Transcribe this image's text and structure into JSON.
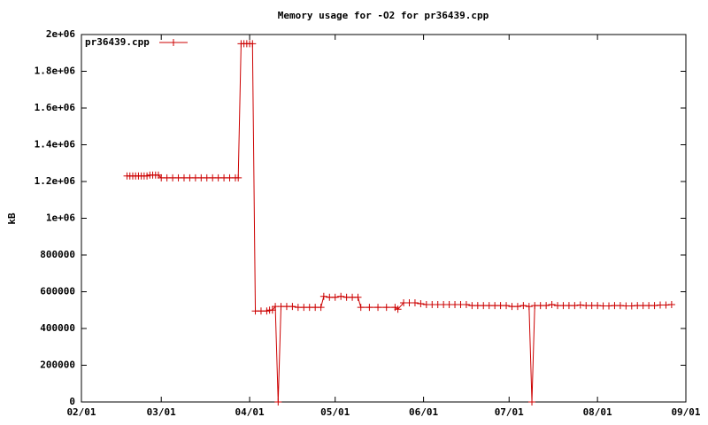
{
  "chart_data": {
    "type": "line",
    "title": "Memory usage for -O2 for pr36439.cpp",
    "ylabel": "kB",
    "x": [
      "02/17",
      "02/18",
      "02/19",
      "02/20",
      "02/21",
      "02/22",
      "02/23",
      "02/24",
      "02/25",
      "02/26",
      "02/27",
      "02/28",
      "03/01",
      "03/03",
      "03/05",
      "03/07",
      "03/09",
      "03/11",
      "03/13",
      "03/15",
      "03/17",
      "03/19",
      "03/21",
      "03/23",
      "03/25",
      "03/27",
      "03/28",
      "03/29",
      "03/30",
      "03/31",
      "04/01",
      "04/02",
      "04/03",
      "04/05",
      "04/07",
      "04/08",
      "04/09",
      "04/10",
      "04/11",
      "04/12",
      "04/14",
      "04/16",
      "04/18",
      "04/20",
      "04/22",
      "04/24",
      "04/26",
      "04/27",
      "04/29",
      "05/01",
      "05/03",
      "05/05",
      "05/07",
      "05/09",
      "05/10",
      "05/13",
      "05/16",
      "05/19",
      "05/22",
      "05/23",
      "05/25",
      "05/27",
      "05/29",
      "05/31",
      "06/02",
      "06/04",
      "06/06",
      "06/08",
      "06/10",
      "06/12",
      "06/14",
      "06/16",
      "06/18",
      "06/20",
      "06/22",
      "06/24",
      "06/26",
      "06/28",
      "06/30",
      "07/02",
      "07/04",
      "07/06",
      "07/08",
      "07/09",
      "07/10",
      "07/12",
      "07/14",
      "07/16",
      "07/18",
      "07/20",
      "07/22",
      "07/24",
      "07/26",
      "07/28",
      "07/30",
      "08/01",
      "08/03",
      "08/05",
      "08/07",
      "08/09",
      "08/11",
      "08/13",
      "08/15",
      "08/17",
      "08/19",
      "08/21",
      "08/23",
      "08/25",
      "08/27"
    ],
    "series": [
      {
        "name": "pr36439.cpp",
        "color": "#cc0000",
        "values": [
          1230000,
          1230000,
          1230000,
          1230000,
          1230000,
          1230000,
          1230000,
          1230000,
          1235000,
          1235000,
          1235000,
          1235000,
          1220000,
          1220000,
          1220000,
          1220000,
          1220000,
          1220000,
          1220000,
          1220000,
          1220000,
          1220000,
          1220000,
          1220000,
          1220000,
          1220000,
          1220000,
          1950000,
          1950000,
          1950000,
          1950000,
          1950000,
          495000,
          495000,
          495000,
          500000,
          500000,
          520000,
          0,
          520000,
          520000,
          520000,
          515000,
          515000,
          515000,
          515000,
          515000,
          575000,
          570000,
          570000,
          575000,
          570000,
          570000,
          570000,
          515000,
          515000,
          515000,
          515000,
          515000,
          505000,
          540000,
          540000,
          540000,
          535000,
          530000,
          530000,
          530000,
          530000,
          530000,
          530000,
          530000,
          530000,
          525000,
          525000,
          525000,
          525000,
          525000,
          525000,
          525000,
          520000,
          520000,
          525000,
          520000,
          0,
          525000,
          525000,
          525000,
          530000,
          525000,
          525000,
          525000,
          525000,
          528000,
          525000,
          525000,
          525000,
          523000,
          523000,
          525000,
          525000,
          523000,
          523000,
          525000,
          525000,
          525000,
          525000,
          528000,
          528000,
          530000
        ]
      }
    ],
    "xlim": [
      "02/01",
      "09/01"
    ],
    "xticks": [
      "02/01",
      "03/01",
      "04/01",
      "05/01",
      "06/01",
      "07/01",
      "08/01",
      "09/01"
    ],
    "ylim": [
      0,
      2000000
    ],
    "yticks": [
      0,
      200000,
      400000,
      600000,
      800000,
      {
        "value": 1000000,
        "label": "1e+06"
      },
      {
        "value": 1200000,
        "label": "1.2e+06"
      },
      {
        "value": 1400000,
        "label": "1.4e+06"
      },
      {
        "value": 1600000,
        "label": "1.6e+06"
      },
      {
        "value": 1800000,
        "label": "1.8e+06"
      },
      {
        "value": 2000000,
        "label": "2e+06"
      }
    ],
    "legend": "top-left"
  }
}
